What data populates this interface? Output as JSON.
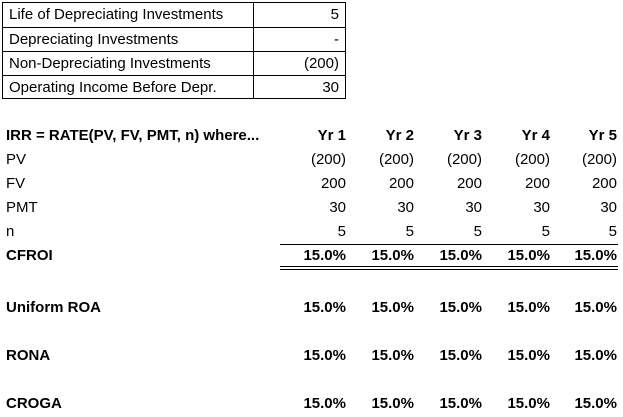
{
  "inputs": [
    {
      "label": "Life of Depreciating Investments",
      "value": "5"
    },
    {
      "label": "Depreciating Investments",
      "value": "-"
    },
    {
      "label": "Non-Depreciating Investments",
      "value": "(200)"
    },
    {
      "label": "Operating Income Before Depr.",
      "value": "30"
    }
  ],
  "table": {
    "header_label": "IRR = RATE(PV, FV, PMT, n) where...",
    "years": [
      "Yr 1",
      "Yr 2",
      "Yr 3",
      "Yr 4",
      "Yr 5"
    ],
    "rows": [
      {
        "label": "PV",
        "values": [
          "(200)",
          "(200)",
          "(200)",
          "(200)",
          "(200)"
        ]
      },
      {
        "label": "FV",
        "values": [
          "200",
          "200",
          "200",
          "200",
          "200"
        ]
      },
      {
        "label": "PMT",
        "values": [
          "30",
          "30",
          "30",
          "30",
          "30"
        ]
      },
      {
        "label": "n",
        "values": [
          "5",
          "5",
          "5",
          "5",
          "5"
        ]
      }
    ],
    "results": [
      {
        "label": "CFROI",
        "values": [
          "15.0%",
          "15.0%",
          "15.0%",
          "15.0%",
          "15.0%"
        ]
      },
      {
        "label": "Uniform ROA",
        "values": [
          "15.0%",
          "15.0%",
          "15.0%",
          "15.0%",
          "15.0%"
        ]
      },
      {
        "label": "RONA",
        "values": [
          "15.0%",
          "15.0%",
          "15.0%",
          "15.0%",
          "15.0%"
        ]
      },
      {
        "label": "CROGA",
        "values": [
          "15.0%",
          "15.0%",
          "15.0%",
          "15.0%",
          "15.0%"
        ]
      }
    ]
  }
}
